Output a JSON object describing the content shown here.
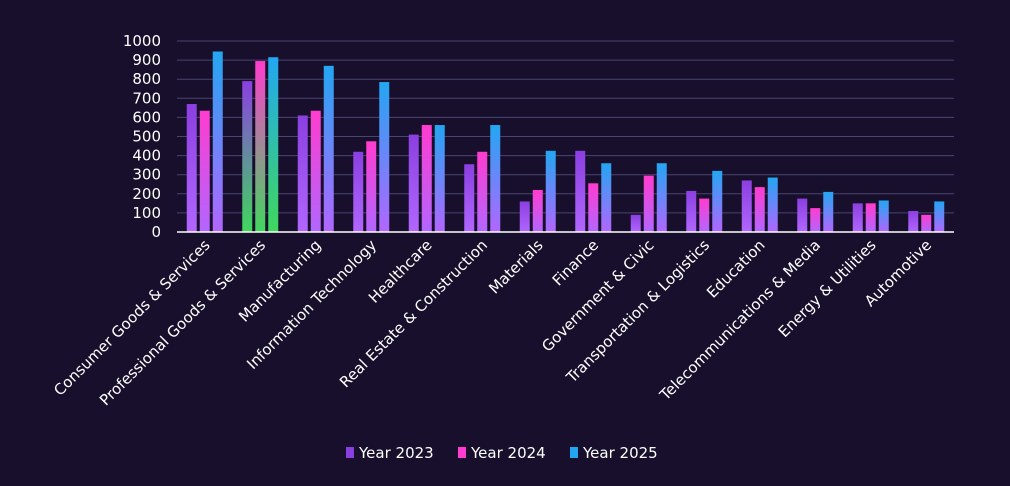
{
  "chart_data": {
    "type": "bar",
    "title": "",
    "xlabel": "",
    "ylabel": "",
    "ylim": [
      0,
      1000
    ],
    "yticks": [
      0,
      100,
      200,
      300,
      400,
      500,
      600,
      700,
      800,
      900,
      1000
    ],
    "grid": true,
    "legend_position": "bottom",
    "categories": [
      "Consumer Goods & Services",
      "Professional Goods & Services",
      "Manufacturing",
      "Information Technology",
      "Healthcare",
      "Real Estate & Construction",
      "Materials",
      "Finance",
      "Government & Civic",
      "Transportation & Logistics",
      "Education",
      "Telecommunications & Media",
      "Energy & Utilities",
      "Automotive"
    ],
    "series": [
      {
        "name": "Year 2023",
        "color": "#8b3fe0",
        "values": [
          670,
          790,
          610,
          420,
          510,
          355,
          160,
          425,
          90,
          215,
          270,
          175,
          150,
          110
        ]
      },
      {
        "name": "Year 2024",
        "color": "#ff3ccf",
        "values": [
          635,
          895,
          635,
          475,
          560,
          420,
          220,
          255,
          295,
          175,
          235,
          125,
          150,
          90
        ]
      },
      {
        "name": "Year 2025",
        "color": "#23a6f2",
        "values": [
          945,
          915,
          870,
          785,
          560,
          560,
          425,
          360,
          360,
          320,
          285,
          210,
          165,
          160
        ]
      }
    ],
    "highlight_category": "Professional Goods & Services",
    "highlight_color": "#3fd85c",
    "fade_color": "#b266ff"
  }
}
